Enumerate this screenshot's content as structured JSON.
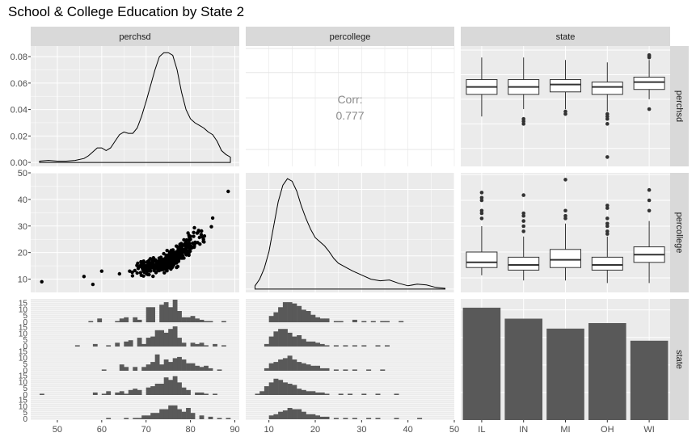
{
  "page": {
    "title": "School & College Education by State 2"
  },
  "chart_data": {
    "type": "pairs",
    "title": "School & College Education by State 2",
    "variables": [
      "perchsd",
      "percollege",
      "state"
    ],
    "states": [
      "IL",
      "IN",
      "MI",
      "OH",
      "WI"
    ],
    "axes": {
      "perchsd": {
        "range": [
          44,
          91
        ],
        "ticks": [
          50,
          60,
          70,
          80,
          90
        ]
      },
      "percollege": {
        "range": [
          5,
          50
        ],
        "ticks": [
          10,
          20,
          30,
          40,
          50
        ]
      },
      "density_perchsd": {
        "range": [
          -0.003,
          0.088
        ],
        "ticks": [
          0.0,
          0.02,
          0.04,
          0.06,
          0.08
        ],
        "tick_labels": [
          "0.00",
          "0.02",
          "0.04",
          "0.06",
          "0.08"
        ]
      },
      "count": {
        "range": [
          0,
          110
        ]
      },
      "hist_count": {
        "ticks": [
          0,
          5,
          10,
          15
        ],
        "tick_labels": [
          "0",
          "5",
          "10",
          "15"
        ]
      }
    },
    "correlation": {
      "label": "Corr:",
      "value": "0.777"
    },
    "density_perchsd": {
      "x": [
        46,
        48,
        50,
        52,
        54,
        56,
        57,
        58,
        59,
        60,
        61,
        62,
        63,
        64,
        65,
        66,
        67,
        68,
        69,
        70,
        71,
        72,
        73,
        74,
        75,
        76,
        77,
        78,
        79,
        80,
        81,
        82,
        83,
        84,
        85,
        86,
        87,
        88,
        89
      ],
      "y": [
        0.001,
        0.0015,
        0.001,
        0.001,
        0.0015,
        0.003,
        0.005,
        0.008,
        0.011,
        0.011,
        0.009,
        0.011,
        0.016,
        0.021,
        0.023,
        0.022,
        0.022,
        0.026,
        0.035,
        0.046,
        0.058,
        0.07,
        0.08,
        0.083,
        0.083,
        0.081,
        0.07,
        0.053,
        0.04,
        0.033,
        0.03,
        0.028,
        0.026,
        0.023,
        0.021,
        0.016,
        0.009,
        0.006,
        0.004
      ]
    },
    "density_percollege": {
      "x": [
        7,
        8,
        9,
        10,
        11,
        12,
        13,
        14,
        15,
        16,
        17,
        18,
        19,
        20,
        21,
        22,
        23,
        24,
        25,
        26,
        27,
        28,
        30,
        32,
        34,
        36,
        38,
        40,
        42,
        44,
        46,
        48
      ],
      "y": [
        0.004,
        0.012,
        0.025,
        0.045,
        0.075,
        0.105,
        0.125,
        0.133,
        0.13,
        0.118,
        0.1,
        0.085,
        0.072,
        0.062,
        0.057,
        0.052,
        0.045,
        0.037,
        0.031,
        0.028,
        0.025,
        0.022,
        0.017,
        0.012,
        0.01,
        0.011,
        0.007,
        0.004,
        0.006,
        0.005,
        0.002,
        0.001
      ]
    },
    "scatter": {
      "x_var": "perchsd",
      "y_var": "percollege",
      "n_points": 420,
      "points_sample": [
        [
          46.5,
          9.0
        ],
        [
          56,
          11
        ],
        [
          58,
          8
        ],
        [
          60,
          13
        ],
        [
          64,
          12
        ],
        [
          70,
          15
        ],
        [
          75,
          18
        ],
        [
          80,
          25
        ],
        [
          85,
          33
        ],
        [
          88.5,
          43
        ]
      ]
    },
    "boxplots_perchsd": [
      {
        "state": "IL",
        "min": 63,
        "q1": 72,
        "median": 75,
        "q3": 78,
        "max": 87,
        "outliers": []
      },
      {
        "state": "IN",
        "min": 66,
        "q1": 72,
        "median": 75,
        "q3": 78,
        "max": 87,
        "outliers": [
          60,
          61,
          62
        ]
      },
      {
        "state": "MI",
        "min": 66,
        "q1": 73,
        "median": 76,
        "q3": 78,
        "max": 86,
        "outliers": [
          64,
          65
        ]
      },
      {
        "state": "OH",
        "min": 65,
        "q1": 72,
        "median": 75,
        "q3": 77,
        "max": 85,
        "outliers": [
          46.5,
          60,
          62,
          63,
          64
        ]
      },
      {
        "state": "WI",
        "min": 70,
        "q1": 74,
        "median": 77,
        "q3": 79,
        "max": 86,
        "outliers": [
          66,
          87,
          87.5,
          88
        ]
      }
    ],
    "boxplots_percollege": [
      {
        "state": "IL",
        "min": 11,
        "q1": 14,
        "median": 16,
        "q3": 20,
        "max": 30,
        "outliers": [
          33,
          35,
          36,
          40,
          41,
          43
        ]
      },
      {
        "state": "IN",
        "min": 9,
        "q1": 13,
        "median": 15,
        "q3": 18,
        "max": 26,
        "outliers": [
          28,
          30,
          32,
          34,
          35,
          42
        ]
      },
      {
        "state": "MI",
        "min": 9,
        "q1": 14,
        "median": 17,
        "q3": 21,
        "max": 31,
        "outliers": [
          33,
          34,
          36,
          48
        ]
      },
      {
        "state": "OH",
        "min": 8,
        "q1": 13,
        "median": 15,
        "q3": 18,
        "max": 26,
        "outliers": [
          27,
          28,
          30,
          31,
          33,
          37,
          38
        ]
      },
      {
        "state": "WI",
        "min": 8,
        "q1": 16,
        "median": 19,
        "q3": 22,
        "max": 32,
        "outliers": [
          36,
          40,
          44
        ]
      }
    ],
    "state_counts": {
      "IL": 102,
      "IN": 92,
      "MI": 83,
      "OH": 88,
      "WI": 72
    },
    "hist_perchsd": [
      {
        "state": "IL",
        "bins": [
          [
            57,
            1
          ],
          [
            59,
            3
          ],
          [
            63,
            1
          ],
          [
            64,
            3
          ],
          [
            65,
            4
          ],
          [
            67,
            4
          ],
          [
            68,
            2
          ],
          [
            70,
            12
          ],
          [
            71,
            12
          ],
          [
            73,
            14
          ],
          [
            74,
            16
          ],
          [
            75,
            12
          ],
          [
            76,
            18
          ],
          [
            77,
            9
          ],
          [
            78,
            4
          ],
          [
            79,
            4
          ],
          [
            80,
            5
          ],
          [
            81,
            3
          ],
          [
            82,
            2
          ],
          [
            83,
            1
          ],
          [
            84,
            1
          ],
          [
            87,
            1
          ]
        ]
      },
      {
        "state": "IN",
        "bins": [
          [
            54,
            1
          ],
          [
            58,
            2
          ],
          [
            61,
            1
          ],
          [
            63,
            3
          ],
          [
            65,
            4
          ],
          [
            66,
            5
          ],
          [
            68,
            7
          ],
          [
            69,
            2
          ],
          [
            70,
            7
          ],
          [
            71,
            8
          ],
          [
            72,
            13
          ],
          [
            73,
            13
          ],
          [
            74,
            11
          ],
          [
            75,
            14
          ],
          [
            76,
            16
          ],
          [
            77,
            7
          ],
          [
            78,
            3
          ],
          [
            80,
            3
          ],
          [
            81,
            2
          ],
          [
            82,
            3
          ],
          [
            83,
            1
          ],
          [
            85,
            2
          ],
          [
            87,
            1
          ]
        ]
      },
      {
        "state": "MI",
        "bins": [
          [
            60,
            1
          ],
          [
            64,
            5
          ],
          [
            65,
            3
          ],
          [
            67,
            3
          ],
          [
            69,
            3
          ],
          [
            70,
            5
          ],
          [
            71,
            7
          ],
          [
            72,
            13
          ],
          [
            73,
            5
          ],
          [
            74,
            9
          ],
          [
            75,
            7
          ],
          [
            76,
            10
          ],
          [
            77,
            11
          ],
          [
            78,
            9
          ],
          [
            79,
            6
          ],
          [
            80,
            6
          ],
          [
            81,
            4
          ],
          [
            82,
            3
          ],
          [
            83,
            4
          ],
          [
            84,
            2
          ],
          [
            86,
            1
          ]
        ]
      },
      {
        "state": "OH",
        "bins": [
          [
            46,
            1
          ],
          [
            58,
            2
          ],
          [
            60,
            1
          ],
          [
            61,
            3
          ],
          [
            63,
            2
          ],
          [
            64,
            3
          ],
          [
            65,
            1
          ],
          [
            66,
            4
          ],
          [
            67,
            5
          ],
          [
            68,
            4
          ],
          [
            70,
            6
          ],
          [
            71,
            7
          ],
          [
            72,
            9
          ],
          [
            73,
            9
          ],
          [
            74,
            14
          ],
          [
            75,
            12
          ],
          [
            76,
            15
          ],
          [
            77,
            10
          ],
          [
            78,
            6
          ],
          [
            79,
            4
          ],
          [
            81,
            2
          ],
          [
            82,
            2
          ],
          [
            83,
            1
          ],
          [
            85,
            1
          ]
        ]
      },
      {
        "state": "WI",
        "bins": [
          [
            61,
            1
          ],
          [
            65,
            1
          ],
          [
            67,
            1
          ],
          [
            68,
            1
          ],
          [
            69,
            3
          ],
          [
            70,
            3
          ],
          [
            71,
            5
          ],
          [
            72,
            5
          ],
          [
            73,
            8
          ],
          [
            74,
            8
          ],
          [
            75,
            11
          ],
          [
            76,
            11
          ],
          [
            77,
            8
          ],
          [
            78,
            6
          ],
          [
            79,
            9
          ],
          [
            80,
            5
          ],
          [
            82,
            3
          ],
          [
            84,
            2
          ],
          [
            86,
            1
          ],
          [
            88,
            1
          ]
        ]
      }
    ],
    "hist_percollege": [
      {
        "state": "IL",
        "bins": [
          [
            10,
            5
          ],
          [
            11,
            8
          ],
          [
            12,
            12
          ],
          [
            13,
            16
          ],
          [
            14,
            16
          ],
          [
            15,
            15
          ],
          [
            16,
            13
          ],
          [
            17,
            10
          ],
          [
            18,
            9
          ],
          [
            19,
            6
          ],
          [
            20,
            4
          ],
          [
            21,
            3
          ],
          [
            22,
            3
          ],
          [
            24,
            1
          ],
          [
            25,
            1
          ],
          [
            28,
            2
          ],
          [
            30,
            1
          ],
          [
            32,
            1
          ],
          [
            34,
            1
          ],
          [
            35,
            1
          ],
          [
            38,
            1
          ]
        ]
      },
      {
        "state": "IN",
        "bins": [
          [
            9,
            2
          ],
          [
            10,
            8
          ],
          [
            11,
            12
          ],
          [
            12,
            14
          ],
          [
            13,
            14
          ],
          [
            14,
            11
          ],
          [
            15,
            8
          ],
          [
            16,
            9
          ],
          [
            17,
            6
          ],
          [
            18,
            4
          ],
          [
            19,
            4
          ],
          [
            20,
            3
          ],
          [
            21,
            2
          ],
          [
            22,
            1
          ],
          [
            24,
            1
          ],
          [
            26,
            1
          ],
          [
            28,
            1
          ],
          [
            30,
            1
          ],
          [
            33,
            1
          ],
          [
            35,
            1
          ]
        ]
      },
      {
        "state": "MI",
        "bins": [
          [
            9,
            2
          ],
          [
            10,
            6
          ],
          [
            11,
            7
          ],
          [
            12,
            9
          ],
          [
            13,
            10
          ],
          [
            14,
            12
          ],
          [
            15,
            9
          ],
          [
            16,
            7
          ],
          [
            17,
            6
          ],
          [
            18,
            5
          ],
          [
            19,
            4
          ],
          [
            20,
            4
          ],
          [
            21,
            2
          ],
          [
            22,
            2
          ],
          [
            24,
            1
          ],
          [
            26,
            1
          ],
          [
            28,
            1
          ],
          [
            31,
            1
          ],
          [
            34,
            1
          ]
        ]
      },
      {
        "state": "OH",
        "bins": [
          [
            7,
            1
          ],
          [
            8,
            3
          ],
          [
            9,
            7
          ],
          [
            10,
            10
          ],
          [
            11,
            13
          ],
          [
            12,
            12
          ],
          [
            13,
            10
          ],
          [
            14,
            9
          ],
          [
            15,
            8
          ],
          [
            16,
            5
          ],
          [
            17,
            4
          ],
          [
            18,
            3
          ],
          [
            19,
            3
          ],
          [
            20,
            2
          ],
          [
            21,
            2
          ],
          [
            22,
            1
          ],
          [
            25,
            1
          ],
          [
            27,
            1
          ],
          [
            30,
            1
          ],
          [
            33,
            1
          ],
          [
            37,
            1
          ]
        ]
      },
      {
        "state": "WI",
        "bins": [
          [
            10,
            3
          ],
          [
            11,
            4
          ],
          [
            12,
            6
          ],
          [
            13,
            7
          ],
          [
            14,
            9
          ],
          [
            15,
            8
          ],
          [
            16,
            8
          ],
          [
            17,
            6
          ],
          [
            18,
            4
          ],
          [
            19,
            4
          ],
          [
            20,
            3
          ],
          [
            21,
            2
          ],
          [
            22,
            2
          ],
          [
            24,
            1
          ],
          [
            26,
            1
          ],
          [
            28,
            1
          ],
          [
            31,
            1
          ],
          [
            33,
            1
          ],
          [
            37,
            1
          ],
          [
            42,
            1
          ]
        ]
      }
    ]
  }
}
